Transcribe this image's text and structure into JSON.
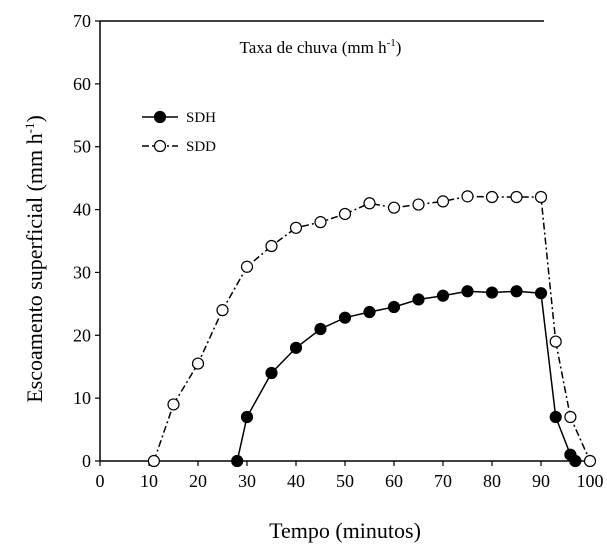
{
  "chart_data": {
    "type": "line",
    "xlabel": "Tempo (minutos)",
    "ylabel": "Escoamento superficial (mm h",
    "ylabel_sup": "-1",
    "ylabel_close": ")",
    "xlim": [
      0,
      100
    ],
    "ylim": [
      0,
      70
    ],
    "xticks": [
      0,
      10,
      20,
      30,
      40,
      50,
      60,
      70,
      80,
      90,
      100
    ],
    "yticks": [
      0,
      10,
      20,
      30,
      40,
      50,
      60,
      70
    ],
    "grid": false,
    "legend_position": "top-left",
    "annotation": {
      "text": "Taxa de chuva (mm h",
      "sup": "-1",
      "close": ")",
      "line_y": 70,
      "line_x": [
        0,
        90
      ]
    },
    "series": [
      {
        "name": "SDH",
        "marker": "filled-circle",
        "line_style": "solid",
        "color": "#000000",
        "x": [
          28,
          30,
          35,
          40,
          45,
          50,
          55,
          60,
          65,
          70,
          75,
          80,
          85,
          90,
          93,
          96,
          97
        ],
        "y": [
          0,
          7,
          14,
          18,
          21,
          22.8,
          23.7,
          24.5,
          25.7,
          26.3,
          27,
          26.8,
          27,
          26.7,
          7,
          1,
          0
        ]
      },
      {
        "name": "SDD",
        "marker": "open-circle",
        "line_style": "dash-dot",
        "color": "#000000",
        "x": [
          11,
          15,
          20,
          25,
          30,
          35,
          40,
          45,
          50,
          55,
          60,
          65,
          70,
          75,
          80,
          85,
          90,
          93,
          96,
          100
        ],
        "y": [
          0,
          9,
          15.5,
          24,
          30.9,
          34.2,
          37.1,
          38,
          39.3,
          41,
          40.3,
          40.8,
          41.3,
          42.1,
          42,
          42,
          42,
          19,
          7,
          0
        ]
      }
    ]
  }
}
